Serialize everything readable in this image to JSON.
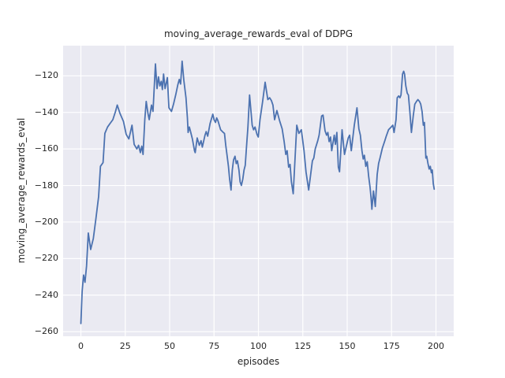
{
  "figure": {
    "title": "moving_average_rewards_eval of DDPG",
    "xlabel": "episodes",
    "ylabel": "moving_average_rewards_eval"
  },
  "chart_data": {
    "type": "line",
    "title": "moving_average_rewards_eval of DDPG",
    "xlabel": "episodes",
    "ylabel": "moving_average_rewards_eval",
    "xlim": [
      -10,
      210
    ],
    "ylim": [
      -262.5,
      -103.5
    ],
    "xticks": [
      0,
      25,
      50,
      75,
      100,
      125,
      150,
      175,
      200
    ],
    "yticks": [
      -120,
      -140,
      -160,
      -180,
      -200,
      -220,
      -240,
      -260
    ],
    "grid": true,
    "legend_position": "none",
    "axes_background": "#eaeaf2",
    "grid_color": "#ffffff",
    "text_color": "#262626",
    "line_color": "#4c72b0",
    "line_width": 1.8,
    "series": [
      {
        "name": "moving_average_rewards_eval",
        "points": [
          [
            0,
            -255.5
          ],
          [
            0.7,
            -238
          ],
          [
            1.5,
            -229
          ],
          [
            2.3,
            -233
          ],
          [
            3.2,
            -224
          ],
          [
            4.2,
            -206
          ],
          [
            5.5,
            -215
          ],
          [
            7,
            -209
          ],
          [
            8.5,
            -198
          ],
          [
            10,
            -186
          ],
          [
            11,
            -169.5
          ],
          [
            12.5,
            -167.5
          ],
          [
            13.5,
            -151.5
          ],
          [
            15,
            -148
          ],
          [
            16.5,
            -146
          ],
          [
            18,
            -144
          ],
          [
            19.5,
            -139.5
          ],
          [
            20.5,
            -136
          ],
          [
            22,
            -140.5
          ],
          [
            24,
            -145
          ],
          [
            25.5,
            -152
          ],
          [
            27,
            -154.5
          ],
          [
            28.8,
            -147
          ],
          [
            30,
            -157.5
          ],
          [
            31.5,
            -160
          ],
          [
            32.5,
            -158
          ],
          [
            33.5,
            -162
          ],
          [
            34.3,
            -158.5
          ],
          [
            35,
            -163
          ],
          [
            36,
            -144
          ],
          [
            36.8,
            -134
          ],
          [
            37.8,
            -140.5
          ],
          [
            38.5,
            -144
          ],
          [
            39.8,
            -136
          ],
          [
            40.6,
            -139.5
          ],
          [
            42,
            -113.5
          ],
          [
            42.9,
            -127
          ],
          [
            43.7,
            -120.5
          ],
          [
            44.5,
            -125.5
          ],
          [
            45.3,
            -123
          ],
          [
            45.9,
            -127.5
          ],
          [
            46.6,
            -119
          ],
          [
            47.4,
            -127
          ],
          [
            48.7,
            -121
          ],
          [
            49.6,
            -137.5
          ],
          [
            51,
            -139.5
          ],
          [
            52.2,
            -135.5
          ],
          [
            53.5,
            -130
          ],
          [
            54.6,
            -125
          ],
          [
            55.4,
            -122
          ],
          [
            56.2,
            -124.5
          ],
          [
            57,
            -112
          ],
          [
            58,
            -122.5
          ],
          [
            59.2,
            -132
          ],
          [
            60,
            -143
          ],
          [
            60.4,
            -151
          ],
          [
            61.1,
            -148
          ],
          [
            61.8,
            -150.5
          ],
          [
            62.8,
            -154.5
          ],
          [
            64,
            -161
          ],
          [
            64.4,
            -162
          ],
          [
            65.5,
            -154
          ],
          [
            66.7,
            -158
          ],
          [
            67.7,
            -155.5
          ],
          [
            68.4,
            -159
          ],
          [
            69.9,
            -152.5
          ],
          [
            70.6,
            -150.5
          ],
          [
            71.4,
            -153
          ],
          [
            72.8,
            -146
          ],
          [
            74.3,
            -141
          ],
          [
            75,
            -144
          ],
          [
            75.8,
            -145.5
          ],
          [
            76.5,
            -143
          ],
          [
            77.2,
            -144.5
          ],
          [
            78.7,
            -149.5
          ],
          [
            80.2,
            -151
          ],
          [
            80.9,
            -151.5
          ],
          [
            81.6,
            -158
          ],
          [
            82.4,
            -164
          ],
          [
            83.1,
            -169.5
          ],
          [
            83.8,
            -176.5
          ],
          [
            84.6,
            -182.5
          ],
          [
            85.3,
            -171.5
          ],
          [
            86,
            -166
          ],
          [
            86.8,
            -164
          ],
          [
            87.5,
            -168
          ],
          [
            88.2,
            -166.5
          ],
          [
            89,
            -171.5
          ],
          [
            89.7,
            -178
          ],
          [
            90.4,
            -180
          ],
          [
            91.2,
            -176.5
          ],
          [
            91.9,
            -171.5
          ],
          [
            92.6,
            -169
          ],
          [
            93.4,
            -157
          ],
          [
            94.1,
            -148
          ],
          [
            95,
            -130.5
          ],
          [
            96.5,
            -147
          ],
          [
            97.3,
            -149.5
          ],
          [
            98.1,
            -148
          ],
          [
            99.2,
            -152
          ],
          [
            99.9,
            -153.5
          ],
          [
            100.9,
            -144
          ],
          [
            102.3,
            -134.5
          ],
          [
            103.8,
            -123.5
          ],
          [
            105.3,
            -133
          ],
          [
            106.3,
            -132
          ],
          [
            107.3,
            -133.5
          ],
          [
            108.2,
            -136
          ],
          [
            109.1,
            -144
          ],
          [
            110.4,
            -139
          ],
          [
            111.9,
            -144.5
          ],
          [
            113.4,
            -149
          ],
          [
            114.5,
            -156
          ],
          [
            115.4,
            -163
          ],
          [
            116.2,
            -161
          ],
          [
            117,
            -170
          ],
          [
            117.8,
            -168.5
          ],
          [
            118.6,
            -178
          ],
          [
            119.6,
            -184.5
          ],
          [
            121.6,
            -147
          ],
          [
            122.8,
            -151.5
          ],
          [
            124.2,
            -149.5
          ],
          [
            125.7,
            -161
          ],
          [
            126.8,
            -172.5
          ],
          [
            128.3,
            -182.5
          ],
          [
            130.4,
            -166.5
          ],
          [
            131.2,
            -165
          ],
          [
            132,
            -160
          ],
          [
            133.4,
            -155.5
          ],
          [
            134.2,
            -152.5
          ],
          [
            135.6,
            -142
          ],
          [
            136.4,
            -141.5
          ],
          [
            137.5,
            -150
          ],
          [
            138.4,
            -152.5
          ],
          [
            139.1,
            -151
          ],
          [
            139.8,
            -156
          ],
          [
            140.6,
            -153.5
          ],
          [
            141.3,
            -161
          ],
          [
            142.7,
            -152.5
          ],
          [
            143.4,
            -157.5
          ],
          [
            144.2,
            -151
          ],
          [
            145,
            -170
          ],
          [
            145.7,
            -172.5
          ],
          [
            147.1,
            -149.5
          ],
          [
            148.5,
            -163
          ],
          [
            150.6,
            -154
          ],
          [
            151.4,
            -152.5
          ],
          [
            152.3,
            -161
          ],
          [
            154,
            -147
          ],
          [
            155.5,
            -137.5
          ],
          [
            156.6,
            -149
          ],
          [
            157.4,
            -152.5
          ],
          [
            158.3,
            -161
          ],
          [
            159,
            -165.5
          ],
          [
            159.7,
            -163.5
          ],
          [
            160.5,
            -169.5
          ],
          [
            161.3,
            -167
          ],
          [
            162.1,
            -175
          ],
          [
            162.9,
            -181
          ],
          [
            163.4,
            -186.5
          ],
          [
            163.9,
            -193
          ],
          [
            164.8,
            -183
          ],
          [
            165.8,
            -191.5
          ],
          [
            166.9,
            -174
          ],
          [
            167.7,
            -168
          ],
          [
            168.5,
            -165
          ],
          [
            169.8,
            -159.5
          ],
          [
            171.2,
            -155.5
          ],
          [
            172,
            -153
          ],
          [
            173.3,
            -149.5
          ],
          [
            174.8,
            -148
          ],
          [
            175.7,
            -147
          ],
          [
            176.4,
            -151
          ],
          [
            177.5,
            -144
          ],
          [
            178.2,
            -132
          ],
          [
            179,
            -131
          ],
          [
            179.7,
            -132
          ],
          [
            180.3,
            -130.5
          ],
          [
            181.2,
            -119
          ],
          [
            181.8,
            -117.5
          ],
          [
            182.3,
            -119
          ],
          [
            183,
            -125.5
          ],
          [
            183.8,
            -129.5
          ],
          [
            184.5,
            -130.5
          ],
          [
            185.3,
            -139.5
          ],
          [
            186.2,
            -151
          ],
          [
            187.2,
            -142
          ],
          [
            188.1,
            -135.5
          ],
          [
            189,
            -134
          ],
          [
            189.8,
            -133
          ],
          [
            190.7,
            -134
          ],
          [
            191.4,
            -135.5
          ],
          [
            192.2,
            -139.5
          ],
          [
            192.9,
            -147
          ],
          [
            193.5,
            -145.5
          ],
          [
            194.3,
            -165
          ],
          [
            194.8,
            -164
          ],
          [
            195.5,
            -168
          ],
          [
            196.2,
            -171
          ],
          [
            196.8,
            -169.5
          ],
          [
            197.4,
            -173
          ],
          [
            197.9,
            -171.5
          ],
          [
            198.5,
            -179
          ],
          [
            199,
            -182
          ]
        ]
      }
    ]
  }
}
